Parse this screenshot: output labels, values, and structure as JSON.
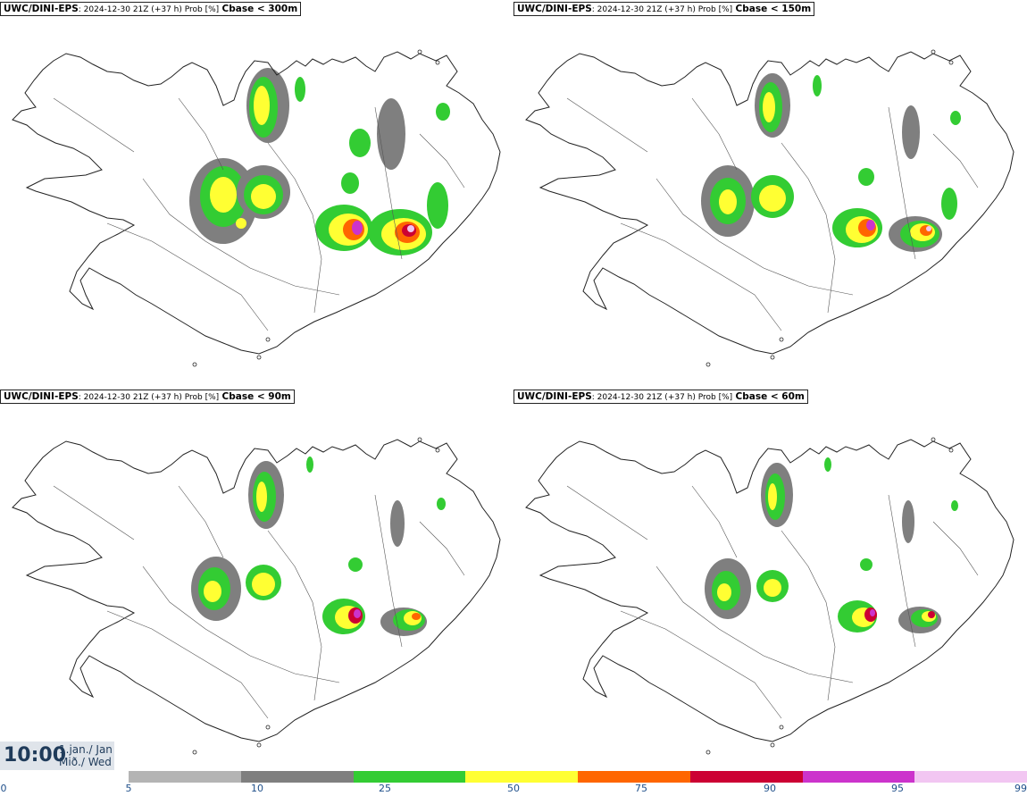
{
  "panels": [
    {
      "model": "UWC/DINI-EPS",
      "meta": ": 2024-12-30 21Z (+37 h) Prob [%]",
      "threshold": "Cbase < 300m"
    },
    {
      "model": "UWC/DINI-EPS",
      "meta": ": 2024-12-30 21Z (+37 h) Prob [%]",
      "threshold": "Cbase < 150m"
    },
    {
      "model": "UWC/DINI-EPS",
      "meta": ": 2024-12-30 21Z (+37 h) Prob [%]",
      "threshold": "Cbase < 90m"
    },
    {
      "model": "UWC/DINI-EPS",
      "meta": ": 2024-12-30 21Z (+37 h) Prob [%]",
      "threshold": "Cbase < 60m"
    }
  ],
  "valid_time": {
    "time": "10:00",
    "date_line1": "1.jan./ Jan",
    "date_line2": "Mið./ Wed"
  },
  "legend": {
    "ticks": [
      "0",
      "5",
      "10",
      "25",
      "50",
      "75",
      "90",
      "95",
      "99"
    ],
    "colors": [
      "#b4b4b4",
      "#7f7f7f",
      "#33cc33",
      "#ffff33",
      "#ff6600",
      "#cc0033",
      "#cc33cc",
      "#f2c6f2"
    ]
  }
}
